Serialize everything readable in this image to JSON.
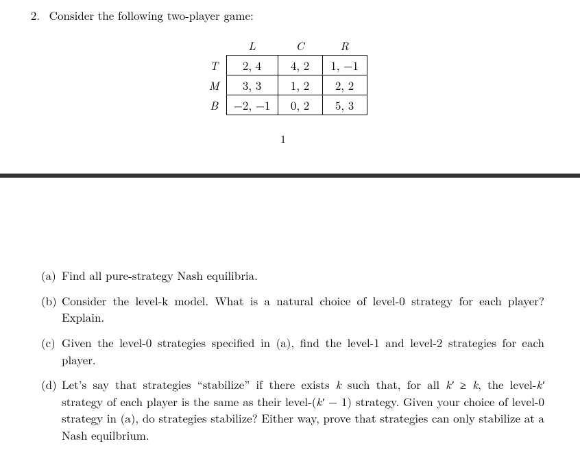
{
  "question": {
    "number": "2.",
    "prompt": "Consider the following two-player game:"
  },
  "game_table": {
    "col_headers": [
      "L",
      "C",
      "R"
    ],
    "row_headers": [
      "T",
      "M",
      "B"
    ],
    "cells": [
      [
        "2, 4",
        "4, 2",
        "1, −1"
      ],
      [
        "3, 3",
        "1, 2",
        "2, 2"
      ],
      [
        "−2, −1",
        "0, 2",
        "5, 3"
      ]
    ],
    "border_color": "#000000",
    "font_size_pt": 12,
    "italic_headers": true
  },
  "page_number": "1",
  "separator_color": "#333333",
  "subparts": {
    "a": {
      "label": "(a)",
      "text": "Find all pure-strategy Nash equilibria."
    },
    "b": {
      "label": "(b)",
      "text": "Consider the level-k model. What is a natural choice of level-0 strategy for each player? Explain."
    },
    "c": {
      "label": "(c)",
      "text": "Given the level-0 strategies specified in (a), find the level-1 and level-2 strategies for each player."
    },
    "d": {
      "label": "(d)",
      "text_pre": "Let’s say that strategies “stabilize” if there exists ",
      "k": "k",
      "text_mid1": " such that, for all ",
      "kprime": "k′",
      "geq": " ≥ ",
      "k2": "k",
      "text_mid2": ", the level-",
      "kprime2": "k′",
      "text_mid3": " strategy of each player is the same as their level-(",
      "kprime3": "k′",
      "minus": " − 1",
      "text_mid4": ") strategy. Given your choice of level-0 strategy in (a), do strategies stabilize? Either way, prove that strategies can only stabilize at a Nash equilbrium."
    }
  },
  "colors": {
    "text": "#000000",
    "background": "#ffffff"
  }
}
